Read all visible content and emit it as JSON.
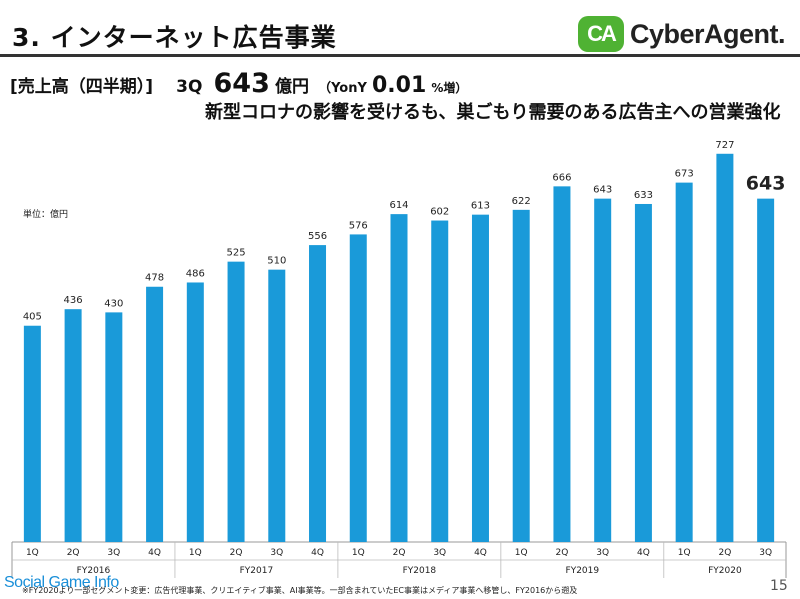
{
  "header": {
    "title": "3. インターネット広告事業",
    "logo_mark": "CA",
    "logo_text": "CyberAgent."
  },
  "headline": {
    "bracket": "[売上高（四半期）]",
    "quarter": "3Q",
    "value": "643",
    "unit": "億円",
    "yoy_prefix": "（YonY",
    "yoy_value": "0.01",
    "yoy_suffix": "%増）",
    "subtitle": "新型コロナの影響を受けるも、巣ごもり需要のある広告主への営業強化"
  },
  "unit_label": "単位：億円",
  "chart_data": {
    "type": "bar",
    "categories": [
      "1Q",
      "2Q",
      "3Q",
      "4Q",
      "1Q",
      "2Q",
      "3Q",
      "4Q",
      "1Q",
      "2Q",
      "3Q",
      "4Q",
      "1Q",
      "2Q",
      "3Q",
      "4Q",
      "1Q",
      "2Q",
      "3Q"
    ],
    "values": [
      405,
      436,
      430,
      478,
      486,
      525,
      510,
      556,
      576,
      614,
      602,
      613,
      622,
      666,
      643,
      633,
      673,
      727,
      643
    ],
    "groups": [
      {
        "label": "FY2016",
        "count": 4
      },
      {
        "label": "FY2017",
        "count": 4
      },
      {
        "label": "FY2018",
        "count": 4
      },
      {
        "label": "FY2019",
        "count": 4
      },
      {
        "label": "FY2020",
        "count": 3
      }
    ],
    "ylim": [
      0,
      800
    ],
    "highlight_last": true,
    "bar_color": "#1a9ad9"
  },
  "footnote": "※FY2020より一部セグメント変更：広告代理事業、クリエイティブ事業、AI事業等。一部含まれていたEC事業はメディア事業へ移管し、FY2016から遡及",
  "watermark": "Social Game Info",
  "page_number": "15"
}
